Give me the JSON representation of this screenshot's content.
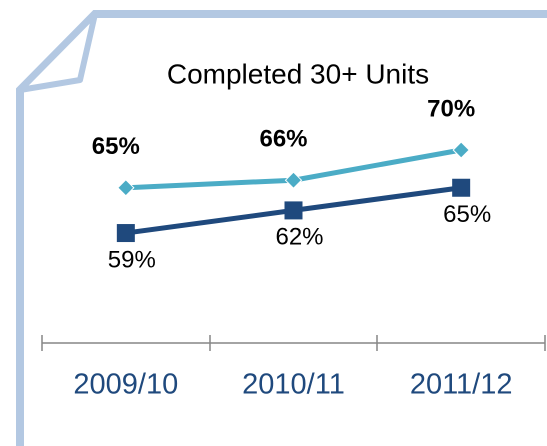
{
  "chart_data": {
    "type": "line",
    "title": "Completed 30+ Units",
    "categories": [
      "2009/10",
      "2010/11",
      "2011/12"
    ],
    "series": [
      {
        "color": "#4bacc6",
        "values": [
          65,
          66,
          70
        ],
        "value_labels": [
          "65%",
          "66%",
          "70%"
        ]
      },
      {
        "color": "#1f497d",
        "values": [
          59,
          62,
          65
        ],
        "value_labels": [
          "59%",
          "62%",
          "65%"
        ]
      }
    ],
    "ylim": [
      50,
      80
    ]
  }
}
